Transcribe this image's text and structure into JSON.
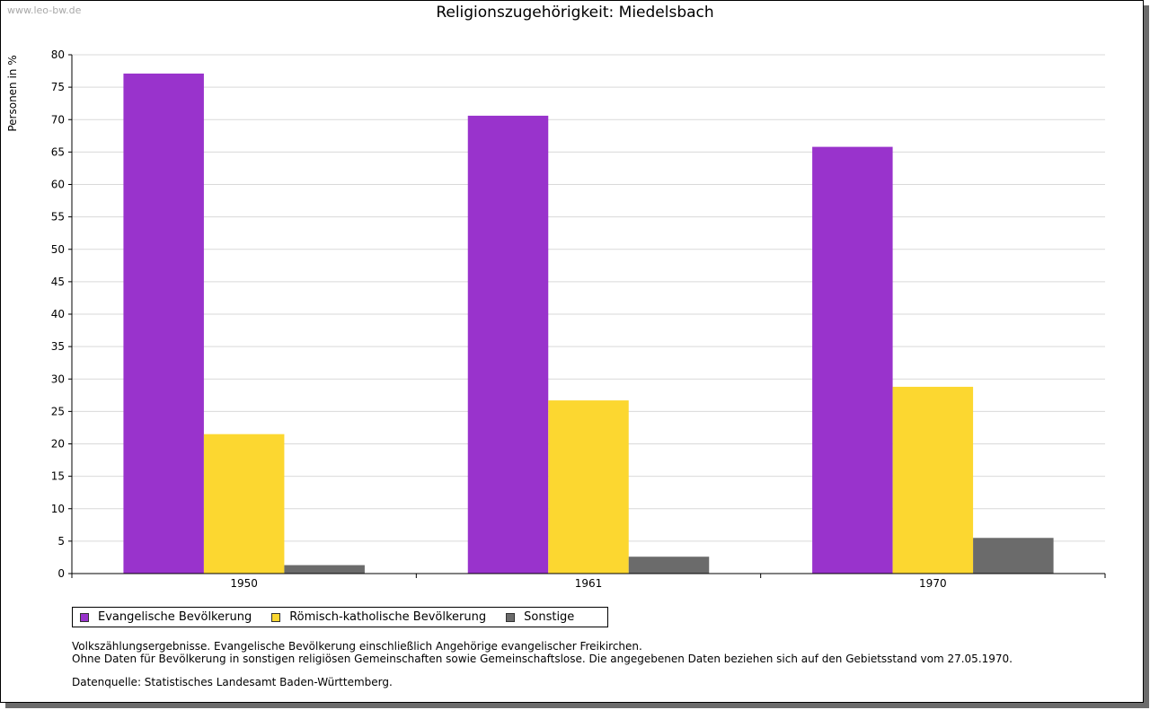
{
  "watermark": "www.leo-bw.de",
  "colors": {
    "evangelisch": "#9933cc",
    "katholisch": "#fcd730",
    "sonstige": "#6b6b6b"
  },
  "chart_data": {
    "type": "bar",
    "title": "Religionszugehörigkeit: Miedelsbach",
    "xlabel": "",
    "ylabel": "Personen in %",
    "ylim": [
      0,
      80
    ],
    "yticks": [
      0,
      5,
      10,
      15,
      20,
      25,
      30,
      35,
      40,
      45,
      50,
      55,
      60,
      65,
      70,
      75,
      80
    ],
    "grid": true,
    "legend_position": "bottom-left",
    "categories": [
      "1950",
      "1961",
      "1970"
    ],
    "series": [
      {
        "name": "Evangelische Bevölkerung",
        "color": "#9933cc",
        "values": [
          77.1,
          70.6,
          65.8
        ]
      },
      {
        "name": "Römisch-katholische Bevölkerung",
        "color": "#fcd730",
        "values": [
          21.5,
          26.7,
          28.8
        ]
      },
      {
        "name": "Sonstige",
        "color": "#6b6b6b",
        "values": [
          1.3,
          2.6,
          5.5
        ]
      }
    ]
  },
  "notes": {
    "line1": "Volkszählungsergebnisse. Evangelische Bevölkerung einschließlich Angehörige evangelischer Freikirchen.",
    "line2": "Ohne Daten für Bevölkerung in sonstigen religiösen Gemeinschaften sowie Gemeinschaftslose. Die angegebenen Daten beziehen sich auf den Gebietsstand vom 27.05.1970.",
    "source": "Datenquelle: Statistisches Landesamt Baden-Württemberg."
  }
}
